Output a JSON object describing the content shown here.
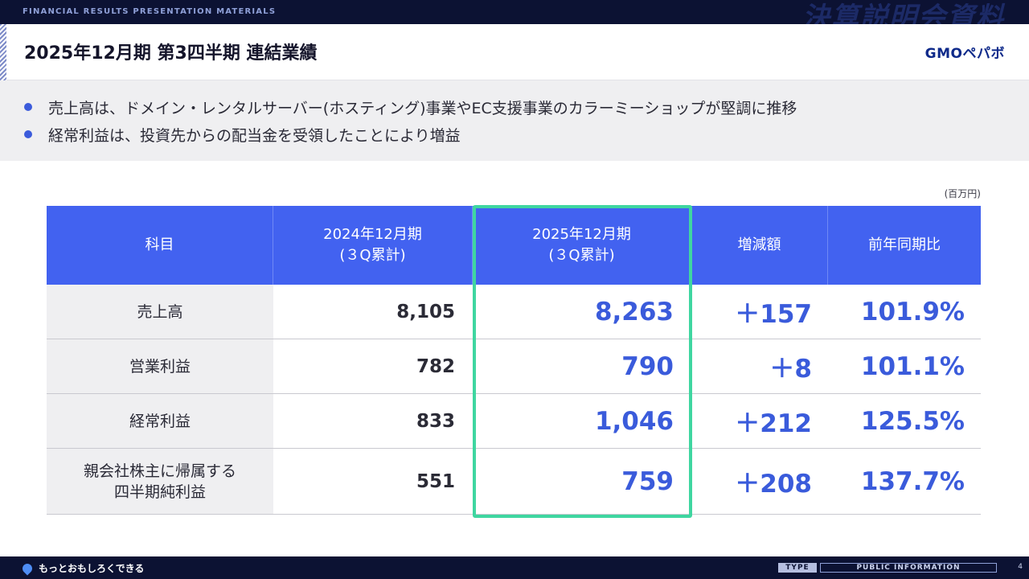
{
  "header": {
    "caption": "FINANCIAL RESULTS PRESENTATION MATERIALS",
    "caption_jp": "決算説明会資料"
  },
  "title": "2025年12月期 第3四半期 連結業績",
  "logo": "GMOペパボ",
  "bullets": [
    "売上高は、ドメイン・レンタルサーバー(ホスティング)事業やEC支援事業のカラーミーショップが堅調に推移",
    "経常利益は、投資先からの配当金を受領したことにより増益"
  ],
  "unit": "(百万円)",
  "table": {
    "headers": {
      "item": "科目",
      "prev_line1": "2024年12月期",
      "prev_line2": "(３Q累計)",
      "cur_line1": "2025年12月期",
      "cur_line2": "(３Q累計)",
      "diff": "増減額",
      "ratio": "前年同期比"
    },
    "rows": [
      {
        "name1": "売上高",
        "name2": "",
        "prev": "8,105",
        "cur": "8,263",
        "diff": "＋157",
        "ratio": "101.9%"
      },
      {
        "name1": "営業利益",
        "name2": "",
        "prev": "782",
        "cur": "790",
        "diff": "＋8",
        "ratio": "101.1%"
      },
      {
        "name1": "経常利益",
        "name2": "",
        "prev": "833",
        "cur": "1,046",
        "diff": "＋212",
        "ratio": "125.5%"
      },
      {
        "name1": "親会社株主に帰属する",
        "name2": "四半期純利益",
        "prev": "551",
        "cur": "759",
        "diff": "＋208",
        "ratio": "137.7%"
      }
    ]
  },
  "footer": {
    "slogan": "もっとおもしろくできる",
    "type_label": "TYPE",
    "type_value": "PUBLIC INFORMATION",
    "page": "4"
  }
}
